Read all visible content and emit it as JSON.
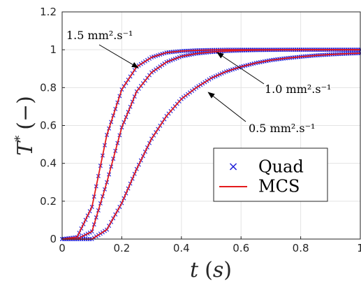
{
  "chart_data": {
    "type": "line",
    "title": "",
    "xlabel": "t (s)",
    "ylabel": "T* (−)",
    "xlim": [
      0,
      1
    ],
    "ylim": [
      0,
      1.2
    ],
    "grid": true,
    "xticks": [
      "0",
      "0.2",
      "0.4",
      "0.6",
      "0.8",
      "1"
    ],
    "yticks": [
      "0",
      "0.2",
      "0.4",
      "0.6",
      "0.8",
      "1",
      "1.2"
    ],
    "x": [
      0,
      0.05,
      0.1,
      0.15,
      0.2,
      0.25,
      0.3,
      0.35,
      0.4,
      0.45,
      0.5,
      0.55,
      0.6,
      0.65,
      0.7,
      0.75,
      0.8,
      0.85,
      0.9,
      0.95,
      1.0
    ],
    "series": [
      {
        "name": "Quad",
        "style": "marker-x",
        "color": "#1f1fd8",
        "curves": [
          {
            "diffusivity": "1.5 mm².s⁻¹",
            "values": [
              0,
              0.01,
              0.17,
              0.55,
              0.79,
              0.91,
              0.96,
              0.985,
              0.993,
              0.997,
              0.999,
              1.0,
              1.0,
              1.0,
              1.0,
              1.0,
              1.0,
              1.0,
              1.0,
              1.0,
              1.0
            ]
          },
          {
            "diffusivity": "1.0 mm².s⁻¹",
            "values": [
              0,
              0.0,
              0.04,
              0.3,
              0.59,
              0.78,
              0.88,
              0.935,
              0.965,
              0.98,
              0.988,
              0.993,
              0.996,
              0.998,
              0.999,
              1.0,
              1.0,
              1.0,
              1.0,
              1.0,
              1.0
            ]
          },
          {
            "diffusivity": "0.5 mm².s⁻¹",
            "values": [
              0,
              0.0,
              0.0,
              0.05,
              0.19,
              0.37,
              0.53,
              0.65,
              0.74,
              0.8,
              0.85,
              0.885,
              0.91,
              0.93,
              0.945,
              0.955,
              0.963,
              0.97,
              0.975,
              0.979,
              0.982
            ]
          }
        ]
      },
      {
        "name": "MCS",
        "style": "line",
        "color": "#e41a1c",
        "curves": [
          {
            "diffusivity": "1.5 mm².s⁻¹",
            "values": [
              0,
              0.01,
              0.17,
              0.55,
              0.79,
              0.91,
              0.96,
              0.985,
              0.993,
              0.997,
              0.999,
              1.0,
              1.0,
              1.0,
              1.0,
              1.0,
              1.0,
              1.0,
              1.0,
              1.0,
              1.0
            ]
          },
          {
            "diffusivity": "1.0 mm².s⁻¹",
            "values": [
              0,
              0.0,
              0.04,
              0.3,
              0.59,
              0.78,
              0.88,
              0.935,
              0.965,
              0.98,
              0.988,
              0.993,
              0.996,
              0.998,
              0.999,
              1.0,
              1.0,
              1.0,
              1.0,
              1.0,
              1.0
            ]
          },
          {
            "diffusivity": "0.5 mm².s⁻¹",
            "values": [
              0,
              0.0,
              0.0,
              0.05,
              0.19,
              0.37,
              0.53,
              0.65,
              0.74,
              0.8,
              0.85,
              0.885,
              0.91,
              0.93,
              0.945,
              0.955,
              0.963,
              0.97,
              0.975,
              0.979,
              0.982
            ]
          }
        ]
      }
    ],
    "annotations": [
      {
        "text": "1.5 mm².s⁻¹",
        "x": 0.255,
        "y": 0.905
      },
      {
        "text": "1.0 mm².s⁻¹",
        "x": 0.52,
        "y": 0.985
      },
      {
        "text": "0.5 mm².s⁻¹",
        "x": 0.49,
        "y": 0.775
      }
    ],
    "legend": {
      "placement": "center-right",
      "entries": [
        {
          "label": "Quad",
          "symbol": "×",
          "color": "#1f1fd8"
        },
        {
          "label": "MCS",
          "symbol": "line",
          "color": "#e41a1c"
        }
      ]
    }
  }
}
